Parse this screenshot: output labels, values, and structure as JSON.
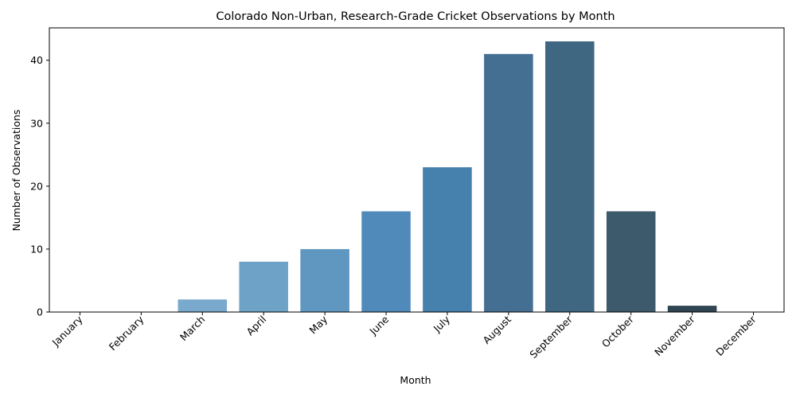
{
  "chart_data": {
    "type": "bar",
    "title": "Colorado Non-Urban, Research-Grade Cricket Observations by Month",
    "xlabel": "Month",
    "ylabel": "Number of Observations",
    "categories": [
      "January",
      "February",
      "March",
      "April",
      "May",
      "June",
      "July",
      "August",
      "September",
      "October",
      "November",
      "December"
    ],
    "values": [
      0,
      0,
      2,
      8,
      10,
      16,
      23,
      41,
      43,
      16,
      1,
      0
    ],
    "colors": [
      "#8fbcd9",
      "#83b2d3",
      "#79a9cc",
      "#6ea3c7",
      "#5f97c0",
      "#508abb",
      "#4680ad",
      "#456f92",
      "#3f6781",
      "#3c5a6c",
      "#2f4552",
      "#2b3a44"
    ],
    "yticks": [
      0,
      10,
      20,
      30,
      40
    ],
    "ylim": [
      0,
      45.15
    ],
    "grid": false,
    "legend": false
  }
}
